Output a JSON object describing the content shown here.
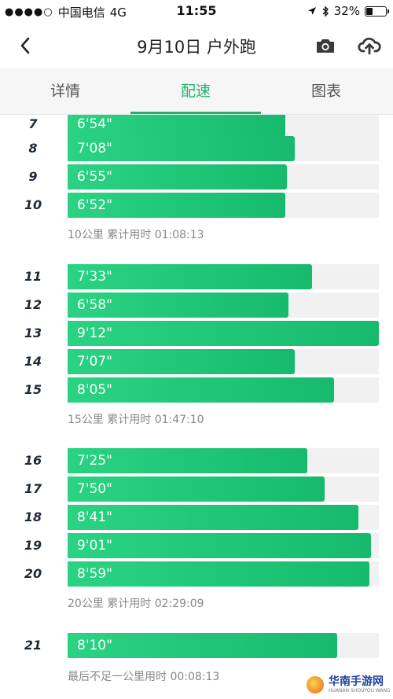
{
  "status_bar": {
    "signal_dots": "●●●●○",
    "carrier": "中国电信",
    "network": "4G",
    "time": "11:55",
    "battery_percent": "32%",
    "battery_level": 0.32
  },
  "nav": {
    "title": "9月10日 户外跑",
    "back_icon": "chevron-left-icon",
    "camera_icon": "camera-icon",
    "upload_icon": "cloud-upload-icon"
  },
  "tabs": [
    {
      "label": "详情",
      "active": false
    },
    {
      "label": "配速",
      "active": true
    },
    {
      "label": "图表",
      "active": false
    }
  ],
  "colors": {
    "accent": "#1fb46a",
    "bar_start": "#2ad383",
    "bar_end": "#17ba6c",
    "track": "#f1f1f1"
  },
  "splits": [
    {
      "km": "7",
      "pace": "6'54\"",
      "fraction": 0.7
    },
    {
      "km": "8",
      "pace": "7'08\"",
      "fraction": 0.73
    },
    {
      "km": "9",
      "pace": "6'55\"",
      "fraction": 0.705
    },
    {
      "km": "10",
      "pace": "6'52\"",
      "fraction": 0.7
    },
    {
      "km": "11",
      "pace": "7'33\"",
      "fraction": 0.785
    },
    {
      "km": "12",
      "pace": "6'58\"",
      "fraction": 0.71
    },
    {
      "km": "13",
      "pace": "9'12\"",
      "fraction": 1.0
    },
    {
      "km": "14",
      "pace": "7'07\"",
      "fraction": 0.73
    },
    {
      "km": "15",
      "pace": "8'05\"",
      "fraction": 0.855
    },
    {
      "km": "16",
      "pace": "7'25\"",
      "fraction": 0.77
    },
    {
      "km": "17",
      "pace": "7'50\"",
      "fraction": 0.825
    },
    {
      "km": "18",
      "pace": "8'41\"",
      "fraction": 0.935
    },
    {
      "km": "19",
      "pace": "9'01\"",
      "fraction": 0.975
    },
    {
      "km": "20",
      "pace": "8'59\"",
      "fraction": 0.97
    },
    {
      "km": "21",
      "pace": "8'10\"",
      "fraction": 0.865
    }
  ],
  "summaries": {
    "s10": "10公里  累计用时 01:08:13",
    "s15": "15公里  累计用时 01:47:10",
    "s20": "20公里  累计用时 02:29:09",
    "last": "最后不足一公里用时 00:08:13"
  },
  "watermark": {
    "main": "华南手游网",
    "sub": "HUANAN SHOUYOU WANG"
  }
}
